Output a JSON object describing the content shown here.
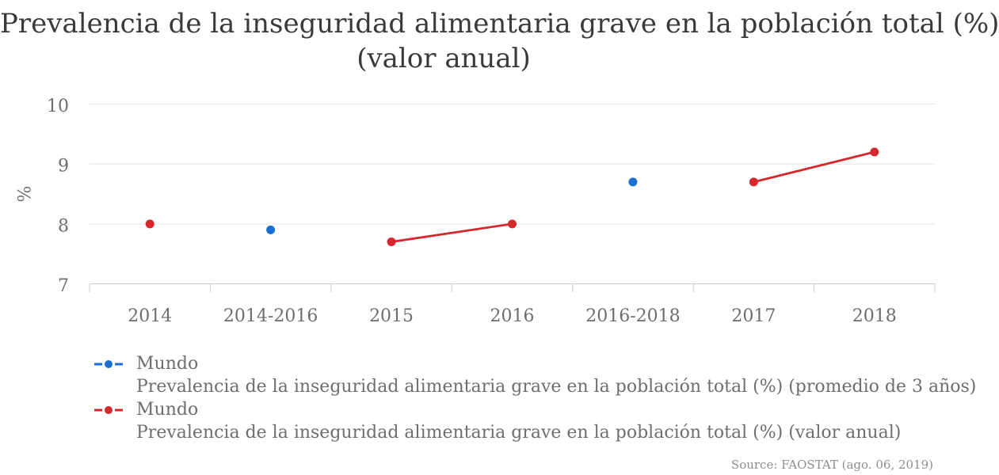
{
  "title": {
    "line1": "Prevalencia de la inseguridad alimentaria grave en la población total (%)",
    "line2": "(valor anual)"
  },
  "source_note": "Source: FAOSTAT (ago. 06, 2019)",
  "colors": {
    "series_blue": "#1b6fd1",
    "series_red": "#d4282e",
    "grid": "#e5e5e5",
    "axis": "#cccccc",
    "axis_text": "#6e6e6e",
    "title_text": "#3a3a3a",
    "source_text": "#8e8e8e"
  },
  "chart_data": {
    "type": "line",
    "title": "Prevalencia de la inseguridad alimentaria grave en la población total (%) (valor anual)",
    "xlabel": "",
    "ylabel": "%",
    "ylim": [
      7,
      10
    ],
    "yticks": [
      7,
      8,
      9,
      10
    ],
    "grid": true,
    "legend_position": "bottom-left",
    "categories": [
      "2014",
      "2014-2016",
      "2015",
      "2016",
      "2016-2018",
      "2017",
      "2018"
    ],
    "series": [
      {
        "name": "Mundo",
        "description": "Prevalencia de la inseguridad alimentaria grave en la población total (%) (promedio de 3 años)",
        "color": "#1b6fd1",
        "points": [
          {
            "category": "2014-2016",
            "value": 7.9
          },
          {
            "category": "2016-2018",
            "value": 8.7
          }
        ]
      },
      {
        "name": "Mundo",
        "description": "Prevalencia de la inseguridad alimentaria grave en la población total (%) (valor anual)",
        "color": "#d4282e",
        "points": [
          {
            "category": "2014",
            "value": 8.0
          },
          {
            "category": "2015",
            "value": 7.7
          },
          {
            "category": "2016",
            "value": 8.0
          },
          {
            "category": "2017",
            "value": 8.7
          },
          {
            "category": "2018",
            "value": 9.2
          }
        ]
      }
    ]
  }
}
